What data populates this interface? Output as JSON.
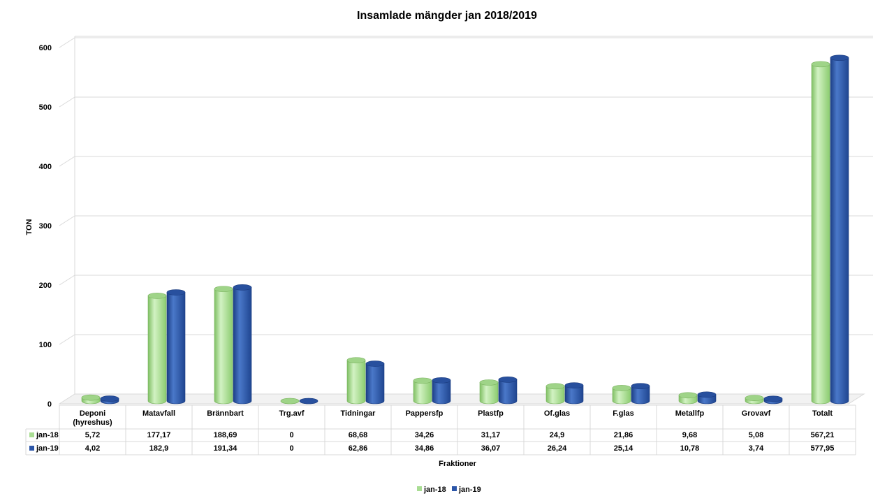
{
  "chart_data": {
    "type": "bar",
    "title": "Insamlade mängder jan 2018/2019",
    "xlabel": "Fraktioner",
    "ylabel": "TON",
    "ylim": [
      0,
      600
    ],
    "yticks": [
      0,
      100,
      200,
      300,
      400,
      500,
      600
    ],
    "grid": true,
    "legend_position": "bottom",
    "data_table": true,
    "categories": [
      [
        "Deponi",
        "(hyreshus)"
      ],
      [
        "Matavfall"
      ],
      [
        "Brännbart"
      ],
      [
        "Trg.avf"
      ],
      [
        "Tidningar"
      ],
      [
        "Pappersfp"
      ],
      [
        "Plastfp"
      ],
      [
        "Of.glas"
      ],
      [
        "F.glas"
      ],
      [
        "Metallfp"
      ],
      [
        "Grovavf"
      ],
      [
        "Totalt"
      ]
    ],
    "series": [
      {
        "name": "jan-18",
        "color": "#a9dd93",
        "values": [
          5.72,
          177.17,
          188.69,
          0,
          68.68,
          34.26,
          31.17,
          24.9,
          21.86,
          9.68,
          5.08,
          567.21
        ],
        "labels": [
          "5,72",
          "177,17",
          "188,69",
          "0",
          "68,68",
          "34,26",
          "31,17",
          "24,9",
          "21,86",
          "9,68",
          "5,08",
          "567,21"
        ]
      },
      {
        "name": "jan-19",
        "color": "#2c56a8",
        "values": [
          4.02,
          182.9,
          191.34,
          0,
          62.86,
          34.86,
          36.07,
          26.24,
          25.14,
          10.78,
          3.74,
          577.95
        ],
        "labels": [
          "4,02",
          "182,9",
          "191,34",
          "0",
          "62,86",
          "34,86",
          "36,07",
          "26,24",
          "25,14",
          "10,78",
          "3,74",
          "577,95"
        ]
      }
    ]
  }
}
